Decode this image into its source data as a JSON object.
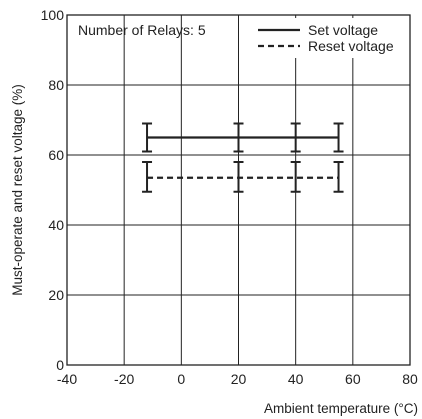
{
  "chart_data": {
    "type": "line",
    "annotation": "Number of Relays: 5",
    "xlabel": "Ambient temperature (°C)",
    "ylabel": "Must-operate and reset voltage (%)",
    "xlim": [
      -40,
      80
    ],
    "ylim": [
      0,
      100
    ],
    "x_ticks": [
      -40,
      -20,
      0,
      20,
      40,
      60,
      80
    ],
    "y_ticks": [
      0,
      20,
      40,
      60,
      80,
      100
    ],
    "grid": true,
    "legend_position": "top-right",
    "series": [
      {
        "name": "Set voltage",
        "style": "solid",
        "x": [
          -12,
          20,
          40,
          55
        ],
        "y": [
          65,
          65,
          65,
          65
        ],
        "err_low": [
          61,
          61,
          61,
          61
        ],
        "err_high": [
          69,
          69,
          69,
          69
        ]
      },
      {
        "name": "Reset voltage",
        "style": "dashed",
        "x": [
          -12,
          20,
          40,
          55
        ],
        "y": [
          53.5,
          53.5,
          53.5,
          53.5
        ],
        "err_low": [
          49.5,
          49.5,
          49.5,
          49.5
        ],
        "err_high": [
          58,
          58,
          58,
          58
        ]
      }
    ]
  }
}
